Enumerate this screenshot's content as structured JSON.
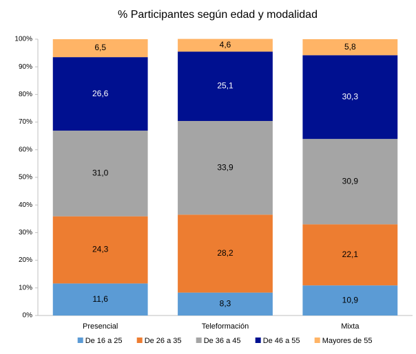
{
  "chart_data": {
    "type": "stacked_bar",
    "title": "% Participantes según edad y modalidad",
    "categories": [
      "Presencial",
      "Teleformación",
      "Mixta"
    ],
    "series": [
      {
        "name": "De 16 a 25",
        "color": "#5b9bd5",
        "values": [
          11.6,
          8.3,
          10.9
        ],
        "value_labels": [
          "11,6",
          "8,3",
          "10,9"
        ]
      },
      {
        "name": "De 26 a 35",
        "color": "#ed7d31",
        "values": [
          24.3,
          28.2,
          22.1
        ],
        "value_labels": [
          "24,3",
          "28,2",
          "22,1"
        ]
      },
      {
        "name": "De 36 a 45",
        "color": "#a5a5a5",
        "values": [
          31.0,
          33.9,
          30.9
        ],
        "value_labels": [
          "31,0",
          "33,9",
          "30,9"
        ]
      },
      {
        "name": "De 46 a 55",
        "color": "#001090",
        "values": [
          26.6,
          25.1,
          30.3
        ],
        "value_labels": [
          "26,6",
          "25,1",
          "30,3"
        ]
      },
      {
        "name": "Mayores de 55",
        "color": "#ffb466",
        "values": [
          6.5,
          4.6,
          5.8
        ],
        "value_labels": [
          "6,5",
          "4,6",
          "5,8"
        ]
      }
    ],
    "ylim": [
      0,
      100
    ],
    "yticks": [
      {
        "value": 0,
        "label": "0%"
      },
      {
        "value": 10,
        "label": "10%"
      },
      {
        "value": 20,
        "label": "20%"
      },
      {
        "value": 30,
        "label": "30%"
      },
      {
        "value": 40,
        "label": "40%"
      },
      {
        "value": 50,
        "label": "50%"
      },
      {
        "value": 60,
        "label": "60%"
      },
      {
        "value": 70,
        "label": "70%"
      },
      {
        "value": 80,
        "label": "80%"
      },
      {
        "value": 90,
        "label": "90%"
      },
      {
        "value": 100,
        "label": "100%"
      }
    ],
    "legend": "bottom"
  }
}
